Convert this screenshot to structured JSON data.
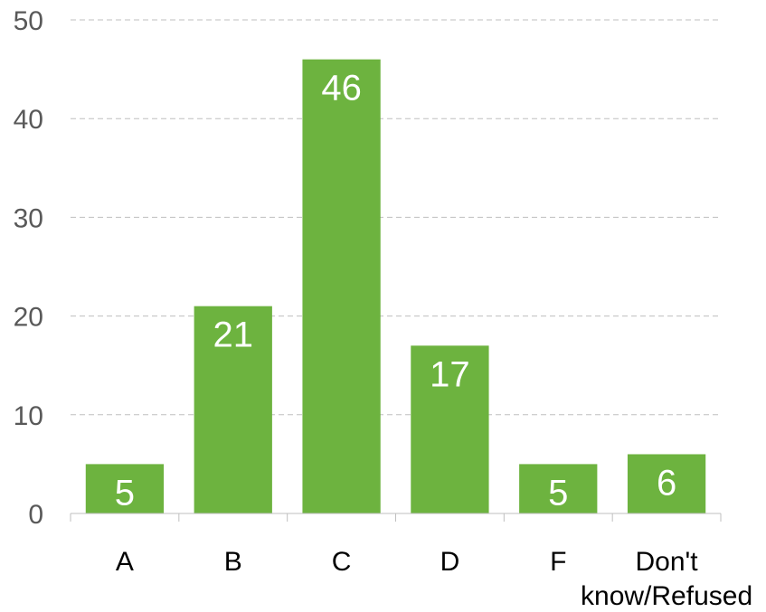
{
  "chart_data": {
    "type": "bar",
    "categories": [
      "A",
      "B",
      "C",
      "D",
      "F",
      "Don't know/Refused"
    ],
    "category_lines": [
      [
        "A"
      ],
      [
        "B"
      ],
      [
        "C"
      ],
      [
        "D"
      ],
      [
        "F"
      ],
      [
        "Don't",
        "know/Refused"
      ]
    ],
    "values": [
      5,
      21,
      46,
      17,
      5,
      6
    ],
    "value_labels": [
      "5",
      "21",
      "46",
      "17",
      "5",
      "6"
    ],
    "yticks": [
      "0",
      "10",
      "20",
      "30",
      "40",
      "50"
    ],
    "ylim": [
      0,
      50
    ],
    "grid": true,
    "bar_color": "#6db33f",
    "grid_color": "#bfbfbf",
    "title": "",
    "xlabel": "",
    "ylabel": ""
  }
}
